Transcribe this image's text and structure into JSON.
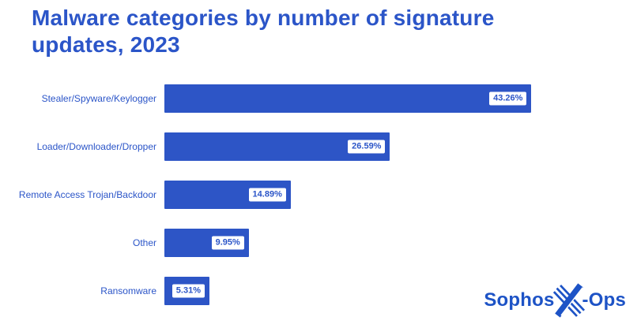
{
  "title": {
    "line1": "Malware categories by number of signature",
    "line2": "updates, 2023"
  },
  "colors": {
    "accent": "#2b55c8",
    "bar_fill": "#2d55c6",
    "badge_bg": "#ffffff",
    "badge_text": "#2b55c8",
    "background": "#ffffff"
  },
  "chart_data": {
    "type": "bar",
    "orientation": "horizontal",
    "title": "Malware categories by number of signature updates, 2023",
    "categories": [
      "Stealer/Spyware/Keylogger",
      "Loader/Downloader/Dropper",
      "Remote Access Trojan/Backdoor",
      "Other",
      "Ransomware"
    ],
    "values": [
      43.26,
      26.59,
      14.89,
      9.95,
      5.31
    ],
    "value_labels": [
      "43.26%",
      "26.59%",
      "14.89%",
      "9.95%",
      "5.31%"
    ],
    "xlabel": "",
    "ylabel": "",
    "xlim": [
      0,
      55.7
    ],
    "grid": false,
    "legend": null,
    "value_label_style": "white rounded badge with blue bold text inside right end of bar"
  },
  "logo": {
    "brand_left": "Sophos",
    "brand_right": "-Ops",
    "icon": "sophos-x-icon"
  }
}
